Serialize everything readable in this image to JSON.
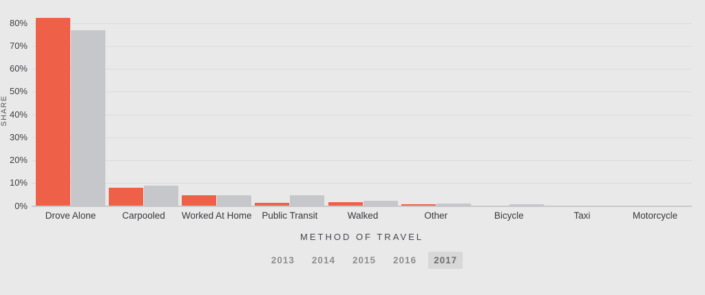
{
  "chart_data": {
    "type": "bar",
    "title": "METHOD OF TRAVEL",
    "ylabel": "SHARE",
    "categories": [
      "Drove Alone",
      "Carpooled",
      "Worked At Home",
      "Public Transit",
      "Walked",
      "Other",
      "Bicycle",
      "Taxi",
      "Motorcycle"
    ],
    "series": [
      {
        "name": "orange",
        "color": "#ef6048",
        "values": [
          82.4,
          8.1,
          4.8,
          1.4,
          1.8,
          0.8,
          0.1,
          0.1,
          0.05
        ]
      },
      {
        "name": "gray",
        "color": "#c6c7cb",
        "values": [
          76.7,
          8.8,
          4.7,
          4.7,
          2.4,
          1.1,
          0.7,
          0.2,
          0.05
        ]
      }
    ],
    "ylim": [
      0,
      90
    ],
    "yticks": [
      0,
      10,
      20,
      30,
      40,
      50,
      60,
      70,
      80
    ],
    "ytick_suffix": "%",
    "grid": true,
    "legend_position": "none"
  },
  "year_selector": {
    "years": [
      "2013",
      "2014",
      "2015",
      "2016",
      "2017"
    ],
    "selected": "2017"
  },
  "colors": {
    "background": "#e9e9e9",
    "gridline": "#dbdbdb",
    "baseline": "#c7c7c9",
    "bar_primary": "#ef6048",
    "bar_comparison": "#c6c7cb",
    "tick_text": "#3e3e44",
    "title_text": "#46464d",
    "year_text": "#8d8d8d",
    "year_selected_bg": "#d8d8d8"
  }
}
